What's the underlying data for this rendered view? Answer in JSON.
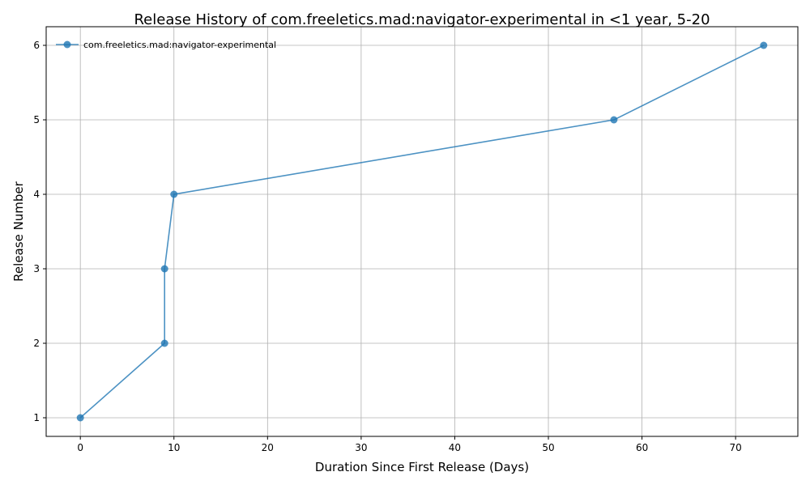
{
  "chart_data": {
    "type": "line",
    "title": "Release History of com.freeletics.mad:navigator-experimental in <1 year, 5-20",
    "xlabel": "Duration Since First Release (Days)",
    "ylabel": "Release Number",
    "xlim": [
      -3.65,
      76.65
    ],
    "ylim": [
      0.75,
      6.25
    ],
    "xticks": [
      0,
      10,
      20,
      30,
      40,
      50,
      60,
      70
    ],
    "yticks": [
      1,
      2,
      3,
      4,
      5,
      6
    ],
    "grid": true,
    "legend_position": "upper-left",
    "series": [
      {
        "name": "com.freeletics.mad:navigator-experimental",
        "color": "#1f77b4",
        "marker": "circle",
        "points": [
          {
            "x": 0,
            "y": 1
          },
          {
            "x": 9,
            "y": 2
          },
          {
            "x": 9,
            "y": 3
          },
          {
            "x": 10,
            "y": 4
          },
          {
            "x": 57,
            "y": 5
          },
          {
            "x": 73,
            "y": 6
          }
        ]
      }
    ]
  }
}
